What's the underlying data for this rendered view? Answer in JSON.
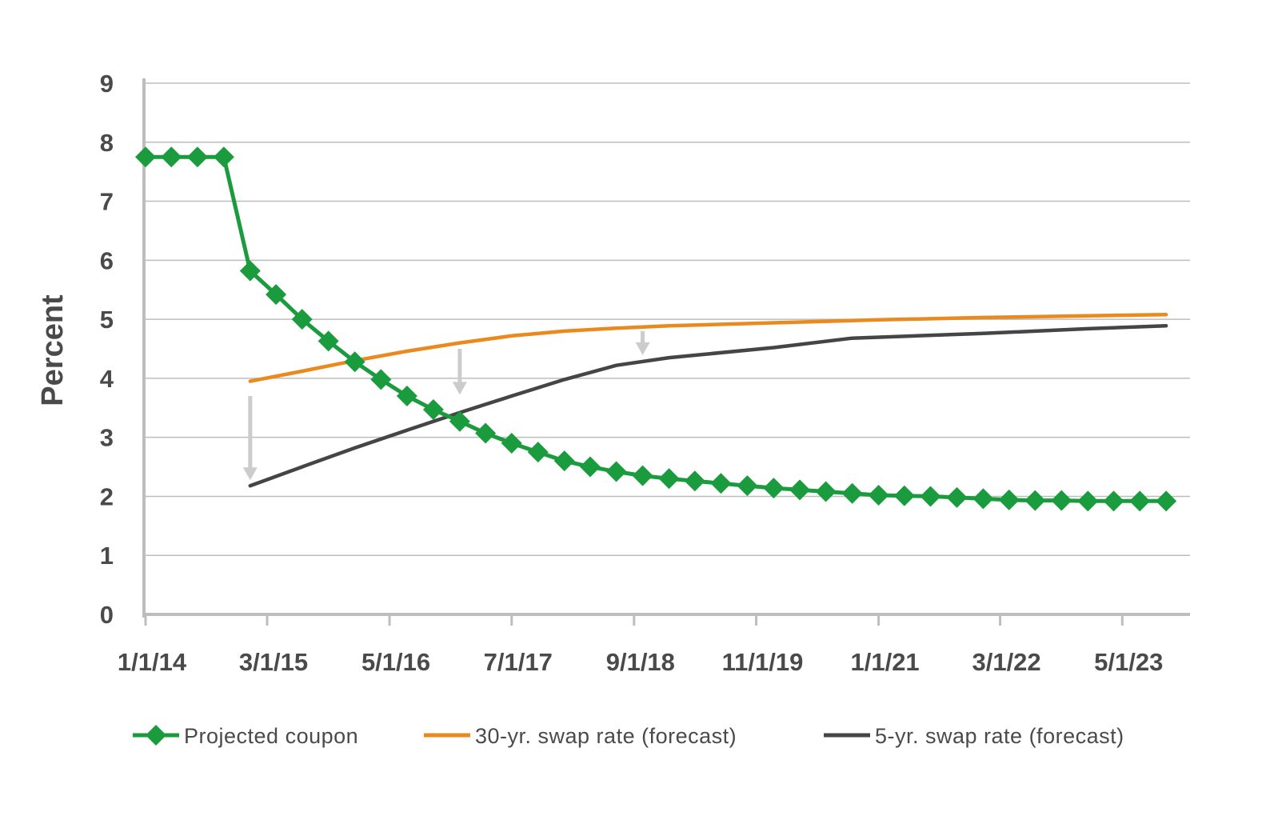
{
  "chart_data": {
    "type": "line",
    "ylabel": "Percent",
    "xlabel": "",
    "ylim": [
      0,
      9
    ],
    "yticks": [
      "0",
      "1",
      "2",
      "3",
      "4",
      "5",
      "6",
      "7",
      "8",
      "9"
    ],
    "x_range": [
      "2014-01-01",
      "2023-12-01"
    ],
    "xtick_labels": [
      {
        "label": "1/1/14",
        "date": "2014-01-01"
      },
      {
        "label": "3/1/15",
        "date": "2015-03-01"
      },
      {
        "label": "5/1/16",
        "date": "2016-05-01"
      },
      {
        "label": "7/1/17",
        "date": "2017-07-01"
      },
      {
        "label": "9/1/18",
        "date": "2018-09-01"
      },
      {
        "label": "11/1/19",
        "date": "2019-11-01"
      },
      {
        "label": "1/1/21",
        "date": "2021-01-01"
      },
      {
        "label": "3/1/22",
        "date": "2022-03-01"
      },
      {
        "label": "5/1/23",
        "date": "2023-05-01"
      }
    ],
    "grid": true,
    "legend_position": "bottom",
    "series": [
      {
        "name": "Projected coupon",
        "color": "#1a9b3e",
        "marker": "diamond",
        "points": [
          {
            "x": "2014-01-01",
            "y": 7.75
          },
          {
            "x": "2014-04-01",
            "y": 7.75
          },
          {
            "x": "2014-07-01",
            "y": 7.75
          },
          {
            "x": "2014-10-01",
            "y": 7.75
          },
          {
            "x": "2015-01-01",
            "y": 5.82
          },
          {
            "x": "2015-04-01",
            "y": 5.42
          },
          {
            "x": "2015-07-01",
            "y": 5.0
          },
          {
            "x": "2015-10-01",
            "y": 4.63
          },
          {
            "x": "2016-01-01",
            "y": 4.28
          },
          {
            "x": "2016-04-01",
            "y": 3.98
          },
          {
            "x": "2016-07-01",
            "y": 3.7
          },
          {
            "x": "2016-10-01",
            "y": 3.47
          },
          {
            "x": "2017-01-01",
            "y": 3.27
          },
          {
            "x": "2017-04-01",
            "y": 3.07
          },
          {
            "x": "2017-07-01",
            "y": 2.9
          },
          {
            "x": "2017-10-01",
            "y": 2.75
          },
          {
            "x": "2018-01-01",
            "y": 2.6
          },
          {
            "x": "2018-04-01",
            "y": 2.5
          },
          {
            "x": "2018-07-01",
            "y": 2.42
          },
          {
            "x": "2018-10-01",
            "y": 2.35
          },
          {
            "x": "2019-01-01",
            "y": 2.3
          },
          {
            "x": "2019-04-01",
            "y": 2.26
          },
          {
            "x": "2019-07-01",
            "y": 2.22
          },
          {
            "x": "2019-10-01",
            "y": 2.18
          },
          {
            "x": "2020-01-01",
            "y": 2.14
          },
          {
            "x": "2020-04-01",
            "y": 2.11
          },
          {
            "x": "2020-07-01",
            "y": 2.08
          },
          {
            "x": "2020-10-01",
            "y": 2.05
          },
          {
            "x": "2021-01-01",
            "y": 2.02
          },
          {
            "x": "2021-04-01",
            "y": 2.01
          },
          {
            "x": "2021-07-01",
            "y": 2.0
          },
          {
            "x": "2021-10-01",
            "y": 1.98
          },
          {
            "x": "2022-01-01",
            "y": 1.96
          },
          {
            "x": "2022-04-01",
            "y": 1.94
          },
          {
            "x": "2022-07-01",
            "y": 1.93
          },
          {
            "x": "2022-10-01",
            "y": 1.93
          },
          {
            "x": "2023-01-01",
            "y": 1.92
          },
          {
            "x": "2023-04-01",
            "y": 1.92
          },
          {
            "x": "2023-07-01",
            "y": 1.92
          },
          {
            "x": "2023-10-01",
            "y": 1.92
          }
        ]
      },
      {
        "name": "30-yr. swap rate (forecast)",
        "color": "#ea8a1e",
        "marker": "none",
        "points": [
          {
            "x": "2015-01-01",
            "y": 3.95
          },
          {
            "x": "2015-07-01",
            "y": 4.12
          },
          {
            "x": "2016-01-01",
            "y": 4.3
          },
          {
            "x": "2016-07-01",
            "y": 4.46
          },
          {
            "x": "2017-01-01",
            "y": 4.6
          },
          {
            "x": "2017-07-01",
            "y": 4.72
          },
          {
            "x": "2018-01-01",
            "y": 4.8
          },
          {
            "x": "2018-07-01",
            "y": 4.85
          },
          {
            "x": "2019-01-01",
            "y": 4.89
          },
          {
            "x": "2020-01-01",
            "y": 4.94
          },
          {
            "x": "2021-01-01",
            "y": 4.99
          },
          {
            "x": "2022-01-01",
            "y": 5.03
          },
          {
            "x": "2023-01-01",
            "y": 5.06
          },
          {
            "x": "2023-10-01",
            "y": 5.08
          }
        ]
      },
      {
        "name": "5-yr. swap rate (forecast)",
        "color": "#454545",
        "marker": "none",
        "points": [
          {
            "x": "2015-01-01",
            "y": 2.18
          },
          {
            "x": "2015-07-01",
            "y": 2.5
          },
          {
            "x": "2016-01-01",
            "y": 2.82
          },
          {
            "x": "2016-07-01",
            "y": 3.12
          },
          {
            "x": "2017-01-01",
            "y": 3.42
          },
          {
            "x": "2017-07-01",
            "y": 3.7
          },
          {
            "x": "2018-01-01",
            "y": 3.98
          },
          {
            "x": "2018-07-01",
            "y": 4.22
          },
          {
            "x": "2019-01-01",
            "y": 4.35
          },
          {
            "x": "2020-01-01",
            "y": 4.52
          },
          {
            "x": "2020-10-01",
            "y": 4.68
          },
          {
            "x": "2022-01-01",
            "y": 4.76
          },
          {
            "x": "2023-01-01",
            "y": 4.84
          },
          {
            "x": "2023-10-01",
            "y": 4.89
          }
        ]
      }
    ],
    "annotations": [
      {
        "type": "arrow",
        "direction": "down",
        "color": "#cccccc",
        "x": "2015-01-01",
        "from_y": 3.7,
        "to_y": 2.3
      },
      {
        "type": "arrow",
        "direction": "down",
        "color": "#cccccc",
        "x": "2017-01-01",
        "from_y": 4.5,
        "to_y": 3.75
      },
      {
        "type": "arrow",
        "direction": "down",
        "color": "#cccccc",
        "x": "2018-10-01",
        "from_y": 4.8,
        "to_y": 4.42
      }
    ]
  }
}
